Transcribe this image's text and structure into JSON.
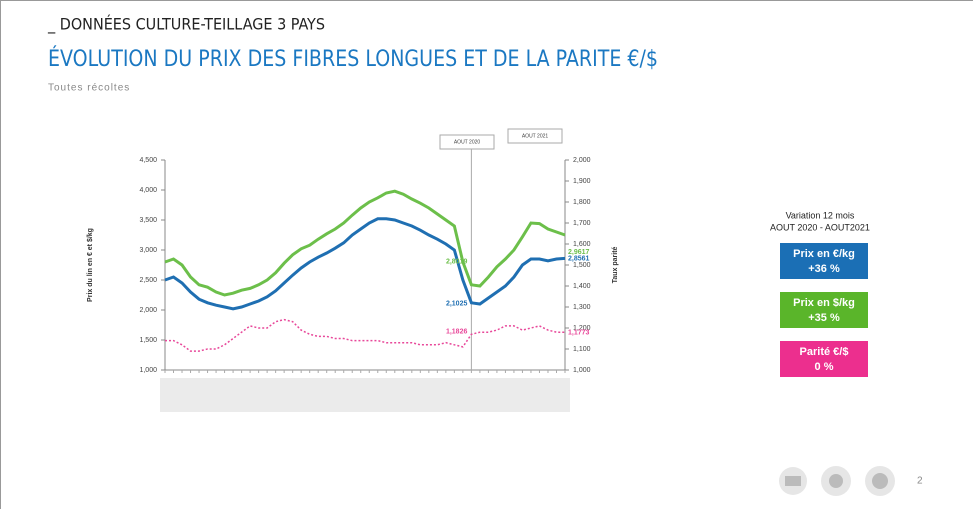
{
  "header": "_ DONNÉES CULTURE-TEILLAGE 3 PAYS",
  "title": "ÉVOLUTION DU PRIX DES FIBRES LONGUES ET DE LA PARITE €/$",
  "subtitle": "Toutes récoltes",
  "page_number": "2",
  "panel": {
    "heading": "Variation 12 mois",
    "period": "AOUT 2020 - AOUT2021",
    "boxes": [
      {
        "label": "Prix en €/kg",
        "change": "+36 %",
        "color": "#1b6fb5"
      },
      {
        "label": "Prix en $/kg",
        "change": "+35 %",
        "color": "#5ab52a"
      },
      {
        "label": "Parité €/$",
        "change": "0 %",
        "color": "#ec2f8e"
      }
    ]
  },
  "chart_data": {
    "type": "line",
    "ylabel": "Prix du lin en € et $/kg",
    "y2label": "Taux parité",
    "markers": [
      "AOUT 2020",
      "AOUT 2021"
    ],
    "categories": [
      null,
      null,
      null,
      null,
      null,
      null,
      null,
      null,
      null,
      null,
      null,
      null,
      null,
      null,
      null,
      null,
      null,
      null,
      null,
      null,
      null,
      null,
      null,
      null,
      null,
      null,
      null,
      null,
      null,
      null,
      null,
      null,
      null,
      null,
      null,
      null,
      null,
      null,
      null,
      null,
      null,
      null,
      null,
      null,
      null,
      null,
      null,
      null
    ],
    "ylim": [
      1.0,
      4.5
    ],
    "yticks": [
      {
        "value": 1.0,
        "label": "1,000"
      },
      {
        "value": 1.5,
        "label": "1,500"
      },
      {
        "value": 2.0,
        "label": "2,000"
      },
      {
        "value": 2.5,
        "label": "2,500"
      },
      {
        "value": 3.0,
        "label": "3,000"
      },
      {
        "value": 3.5,
        "label": "3,500"
      },
      {
        "value": 4.0,
        "label": "4,000"
      },
      {
        "value": 4.5,
        "label": "4,500"
      }
    ],
    "y2lim": [
      1.0,
      2.0
    ],
    "y2ticks": [
      {
        "value": 1.0,
        "label": "1,000"
      },
      {
        "value": 1.1,
        "label": "1,100"
      },
      {
        "value": 1.2,
        "label": "1,200"
      },
      {
        "value": 1.3,
        "label": "1,300"
      },
      {
        "value": 1.4,
        "label": "1,400"
      },
      {
        "value": 1.5,
        "label": "1,500"
      },
      {
        "value": 1.6,
        "label": "1,600"
      },
      {
        "value": 1.7,
        "label": "1,700"
      },
      {
        "value": 1.8,
        "label": "1,800"
      },
      {
        "value": 1.9,
        "label": "1,900"
      },
      {
        "value": 2.0,
        "label": "2,000"
      }
    ],
    "series": [
      {
        "color": "#6cbf4a",
        "values": [
          2.8,
          2.85,
          2.75,
          2.55,
          2.42,
          2.38,
          2.3,
          2.25,
          2.28,
          2.33,
          2.36,
          2.42,
          2.5,
          2.62,
          2.78,
          2.92,
          3.02,
          3.08,
          3.18,
          3.27,
          3.35,
          3.45,
          3.58,
          3.7,
          3.8,
          3.87,
          3.95,
          3.98,
          3.93,
          3.85,
          3.78,
          3.7,
          3.6,
          3.5,
          3.4,
          2.8,
          2.42,
          2.4,
          2.55,
          2.72,
          2.85,
          3.0,
          3.22,
          3.45,
          3.44,
          3.35,
          3.3,
          3.25
        ]
      },
      {
        "color": "#1f6fb2",
        "values": [
          2.5,
          2.55,
          2.45,
          2.3,
          2.18,
          2.12,
          2.08,
          2.05,
          2.02,
          2.05,
          2.1,
          2.15,
          2.22,
          2.32,
          2.45,
          2.58,
          2.7,
          2.8,
          2.88,
          2.95,
          3.03,
          3.12,
          3.25,
          3.35,
          3.45,
          3.52,
          3.52,
          3.5,
          3.45,
          3.4,
          3.33,
          3.25,
          3.18,
          3.1,
          3.0,
          2.5,
          2.12,
          2.1,
          2.2,
          2.3,
          2.4,
          2.55,
          2.75,
          2.85,
          2.85,
          2.82,
          2.85,
          2.86
        ]
      },
      {
        "color": "#e8489a",
        "axis": "y2",
        "dashed": true,
        "values": [
          1.14,
          1.14,
          1.12,
          1.09,
          1.09,
          1.1,
          1.1,
          1.12,
          1.15,
          1.18,
          1.21,
          1.2,
          1.2,
          1.23,
          1.24,
          1.23,
          1.19,
          1.17,
          1.16,
          1.16,
          1.15,
          1.15,
          1.14,
          1.14,
          1.14,
          1.14,
          1.13,
          1.13,
          1.13,
          1.13,
          1.12,
          1.12,
          1.12,
          1.13,
          1.12,
          1.11,
          1.17,
          1.18,
          1.18,
          1.19,
          1.21,
          1.21,
          1.19,
          1.2,
          1.21,
          1.19,
          1.18,
          1.18
        ]
      }
    ],
    "annotations": [
      {
        "label": "2,8019",
        "value": 2.8019,
        "series": 0
      },
      {
        "label": "2,1025",
        "value": 2.1025,
        "series": 1
      },
      {
        "label": "1,1826",
        "value": 1.1826,
        "series": 2,
        "axis": "y2"
      },
      {
        "label": "2,9617",
        "value": 2.9617,
        "series": 0
      },
      {
        "label": "2,8561",
        "value": 2.8561,
        "series": 1
      },
      {
        "label": "1,1773",
        "value": 1.1773,
        "series": 2,
        "axis": "y2"
      }
    ]
  }
}
